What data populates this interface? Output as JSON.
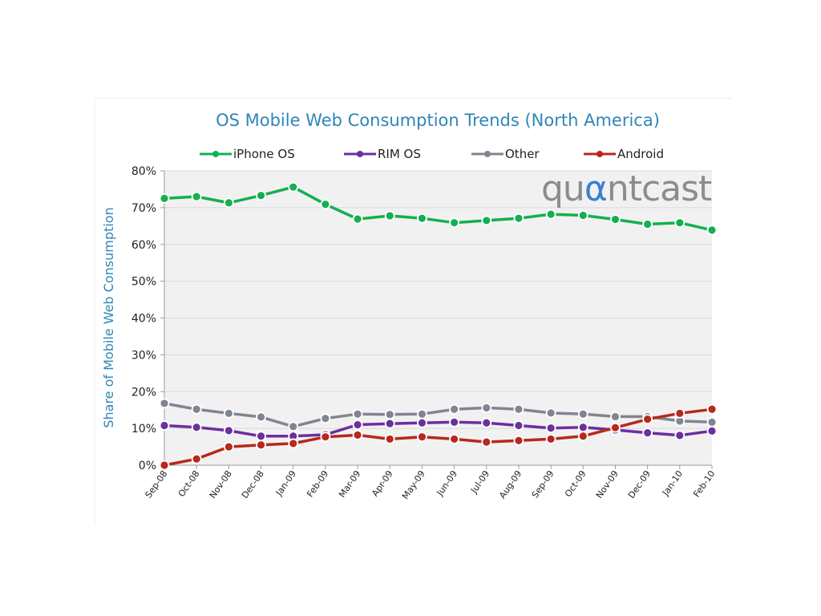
{
  "chart_data": {
    "type": "line",
    "title": "OS Mobile Web Consumption Trends (North America)",
    "xlabel": "",
    "ylabel": "Share of Mobile Web Consumption",
    "categories": [
      "Sep-08",
      "Oct-08",
      "Nov-08",
      "Dec-08",
      "Jan-09",
      "Feb-09",
      "Mar-09",
      "Apr-09",
      "May-09",
      "Jun-09",
      "Jul-09",
      "Aug-09",
      "Sep-09",
      "Oct-09",
      "Nov-09",
      "Dec-09",
      "Jan-10",
      "Feb-10"
    ],
    "ylim": [
      0,
      80
    ],
    "yticks": [
      "0%",
      "10%",
      "20%",
      "30%",
      "40%",
      "50%",
      "60%",
      "70%",
      "80%"
    ],
    "grid": true,
    "legend_position": "top",
    "series": [
      {
        "name": "iPhone OS",
        "color": "#12b050",
        "values": [
          72.5,
          73.0,
          71.3,
          73.3,
          75.6,
          70.9,
          66.9,
          67.8,
          67.1,
          65.9,
          66.5,
          67.1,
          68.2,
          67.9,
          66.8,
          65.5,
          65.9,
          63.9
        ]
      },
      {
        "name": "RIM OS",
        "color": "#6b2fa0",
        "values": [
          10.8,
          10.3,
          9.4,
          7.9,
          7.9,
          8.3,
          11.0,
          11.3,
          11.5,
          11.7,
          11.5,
          10.8,
          10.1,
          10.3,
          9.6,
          8.8,
          8.1,
          9.3
        ]
      },
      {
        "name": "Other",
        "color": "#7f8690",
        "values": [
          16.8,
          15.2,
          14.1,
          13.1,
          10.5,
          12.7,
          13.9,
          13.8,
          13.9,
          15.2,
          15.6,
          15.2,
          14.2,
          13.9,
          13.2,
          13.2,
          12.0,
          11.7
        ]
      },
      {
        "name": "Android",
        "color": "#b7291c",
        "values": [
          0.0,
          1.7,
          5.0,
          5.5,
          5.9,
          7.7,
          8.2,
          7.1,
          7.7,
          7.1,
          6.3,
          6.7,
          7.1,
          7.9,
          10.2,
          12.5,
          14.1,
          15.2
        ]
      }
    ],
    "watermark": "quantcast"
  }
}
